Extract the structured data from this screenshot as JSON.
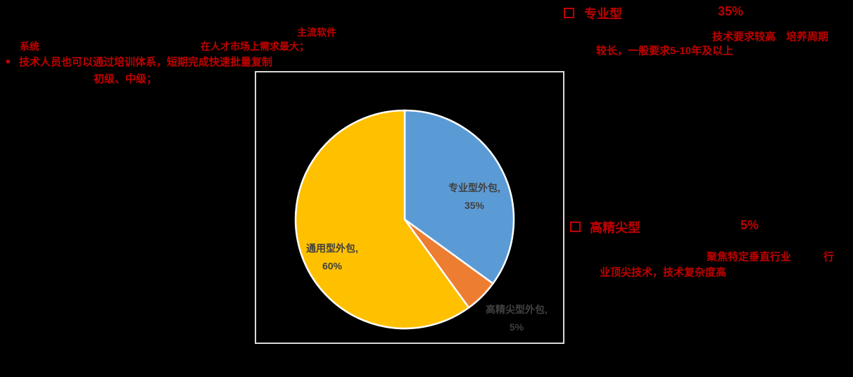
{
  "colors": {
    "background": "#000000",
    "accent_red": "#C00000",
    "chart_box_border": "#D9D9D9",
    "pie_label_text": "#404040"
  },
  "top_left_notes": {
    "line1": "主流软件",
    "line2_part1": "系统",
    "line2_part2": "在人才市场上需求最大；",
    "bullet_icon": "square-bullet",
    "line3": "技术人员也可以通过培训体系，短期完成快速批量复制",
    "line4": "初级、中级；"
  },
  "right_note_professional": {
    "marker_icon": "hollow-square-bullet",
    "title": "专业型",
    "value": "35%",
    "desc_line1": "技术要求较高　培养周期",
    "desc_line2": "较长，一般要求5-10年及以上"
  },
  "right_note_highend": {
    "marker_icon": "hollow-square-bullet",
    "title": "高精尖型",
    "value": "5%",
    "desc_line1_part1": "聚焦特定垂直行业",
    "desc_line1_part2": "行",
    "desc_line2": "业顶尖技术，技术复杂度高"
  },
  "chart_data": {
    "type": "pie",
    "title": "",
    "categories": [
      "专业型外包",
      "高精尖型外包",
      "通用型外包"
    ],
    "values": [
      35,
      5,
      60
    ],
    "series": [
      {
        "name": "专业型外包",
        "value": 35,
        "color": "#5B9BD5",
        "label_line1": "专业型外包,",
        "label_line2": "35%"
      },
      {
        "name": "高精尖型外包",
        "value": 5,
        "color": "#ED7D31",
        "label_line1": "高精尖型外包,",
        "label_line2": "5%"
      },
      {
        "name": "通用型外包",
        "value": 60,
        "color": "#FFC000",
        "label_line1": "通用型外包,",
        "label_line2": "60%"
      }
    ],
    "start_angle_deg": 0,
    "direction": "clockwise",
    "data_labels": true,
    "legend": "none",
    "label_color": "#404040",
    "slice_border_color": "#FFFFFF"
  }
}
